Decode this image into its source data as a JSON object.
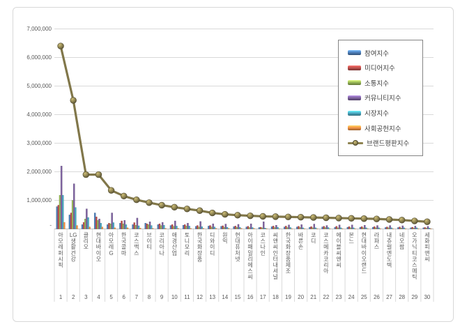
{
  "window": {
    "background": "#ffffff",
    "frame_border_color": "#d8d8d8"
  },
  "chart_data": {
    "type": "bar",
    "subtype": "grouped-bars-with-line-overlay",
    "title": "",
    "xlabel": "",
    "ylabel": "",
    "ylim": [
      0,
      7000000
    ],
    "grid": true,
    "gridline_color": "#d9d9d9",
    "axis_line_color": "#bfbfbf",
    "label_color": "#595959",
    "legend_position": "right-top",
    "y_ticks": [
      {
        "value": 7000000,
        "label": "7,000,000"
      },
      {
        "value": 6000000,
        "label": "6,000,000"
      },
      {
        "value": 5000000,
        "label": "5,000,000"
      },
      {
        "value": 4000000,
        "label": "4,000,000"
      },
      {
        "value": 3000000,
        "label": "3,000,000"
      },
      {
        "value": 2000000,
        "label": "2,000,000"
      },
      {
        "value": 1000000,
        "label": "1,000,000"
      },
      {
        "value": 0,
        "label": "-"
      }
    ],
    "categories": [
      "아모레퍼시픽",
      "LG생활건강",
      "클리오",
      "현대바이오",
      "아모레G",
      "한국콜마",
      "코스맥스",
      "브이티",
      "코리아나",
      "애경산업",
      "토니모리",
      "한국화장품",
      "디와이디",
      "원익",
      "현대퓨처넷",
      "아이패밀리에스씨",
      "코스나인",
      "씨앤씨인터내셔널",
      "한국화장품제조",
      "바른손",
      "코디",
      "코스메카코리아",
      "에이블씨엔씨",
      "본느",
      "현대바이오랜드",
      "라파스",
      "내츄럴엔도텍",
      "네오팜",
      "오가닉티코스메틱",
      "세화피앤씨"
    ],
    "rank_labels": [
      "1",
      "2",
      "3",
      "4",
      "5",
      "6",
      "7",
      "8",
      "9",
      "10",
      "11",
      "12",
      "13",
      "14",
      "15",
      "16",
      "17",
      "18",
      "19",
      "20",
      "21",
      "22",
      "23",
      "24",
      "25",
      "26",
      "27",
      "28",
      "29",
      "30"
    ],
    "series": [
      {
        "name": "참여지수",
        "type": "bar",
        "color": "#4F81BD",
        "values": [
          780000,
          490000,
          150000,
          560000,
          150000,
          200000,
          150000,
          200000,
          150000,
          120000,
          130000,
          90000,
          100000,
          90000,
          80000,
          70000,
          50000,
          80000,
          70000,
          70000,
          60000,
          70000,
          60000,
          60000,
          60000,
          60000,
          50000,
          50000,
          40000,
          40000
        ]
      },
      {
        "name": "미디어지수",
        "type": "bar",
        "color": "#C0504D",
        "values": [
          830000,
          560000,
          230000,
          420000,
          200000,
          280000,
          220000,
          180000,
          180000,
          150000,
          150000,
          120000,
          120000,
          110000,
          100000,
          90000,
          60000,
          100000,
          100000,
          90000,
          80000,
          90000,
          90000,
          80000,
          80000,
          80000,
          70000,
          70000,
          60000,
          50000
        ]
      },
      {
        "name": "소통지수",
        "type": "bar",
        "color": "#9BBB59",
        "values": [
          1180000,
          1000000,
          350000,
          300000,
          180000,
          180000,
          130000,
          150000,
          120000,
          90000,
          100000,
          70000,
          70000,
          60000,
          60000,
          50000,
          40000,
          50000,
          50000,
          50000,
          40000,
          50000,
          40000,
          40000,
          40000,
          40000,
          40000,
          30000,
          30000,
          30000
        ]
      },
      {
        "name": "커뮤니티지수",
        "type": "bar",
        "color": "#8064A2",
        "values": [
          2200000,
          1580000,
          700000,
          350000,
          560000,
          300000,
          380000,
          250000,
          230000,
          280000,
          200000,
          260000,
          180000,
          170000,
          160000,
          180000,
          250000,
          130000,
          140000,
          150000,
          170000,
          120000,
          140000,
          140000,
          130000,
          120000,
          120000,
          110000,
          100000,
          90000
        ]
      },
      {
        "name": "시장지수",
        "type": "bar",
        "color": "#4BACC6",
        "values": [
          1180000,
          750000,
          400000,
          200000,
          220000,
          150000,
          110000,
          120000,
          130000,
          100000,
          100000,
          80000,
          70000,
          60000,
          60000,
          50000,
          30000,
          60000,
          50000,
          40000,
          40000,
          50000,
          40000,
          40000,
          40000,
          40000,
          40000,
          40000,
          40000,
          30000
        ]
      },
      {
        "name": "사회공헌지수",
        "type": "bar",
        "color": "#F79646",
        "values": [
          230000,
          120000,
          70000,
          70000,
          40000,
          40000,
          30000,
          20000,
          20000,
          20000,
          20000,
          20000,
          20000,
          20000,
          20000,
          20000,
          10000,
          10000,
          10000,
          10000,
          10000,
          10000,
          10000,
          10000,
          10000,
          10000,
          10000,
          10000,
          10000,
          10000
        ]
      },
      {
        "name": "브랜드평판지수",
        "type": "line",
        "color": "#8F8452",
        "values": [
          6400000,
          4500000,
          1900000,
          1900000,
          1350000,
          1150000,
          1020000,
          920000,
          830000,
          760000,
          700000,
          640000,
          560000,
          510000,
          480000,
          460000,
          440000,
          430000,
          420000,
          410000,
          400000,
          390000,
          380000,
          370000,
          360000,
          350000,
          330000,
          310000,
          280000,
          250000
        ]
      }
    ]
  }
}
